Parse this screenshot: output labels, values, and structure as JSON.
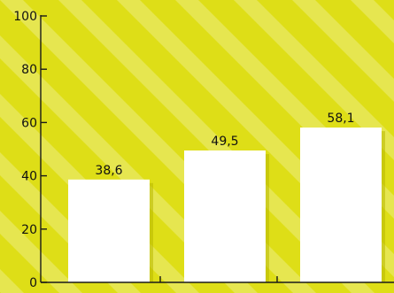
{
  "chart_data": {
    "type": "bar",
    "categories": [
      "",
      "",
      ""
    ],
    "values": [
      38.6,
      49.5,
      58.1
    ],
    "data_labels": [
      "38,6",
      "49,5",
      "58,1"
    ],
    "title": "",
    "xlabel": "",
    "ylabel": "",
    "ylim": [
      0,
      100
    ],
    "yticks": [
      0,
      20,
      40,
      60,
      80,
      100
    ],
    "ytick_labels": [
      "0",
      "20",
      "40",
      "60",
      "80",
      "100"
    ],
    "grid": false,
    "legend": "none",
    "colors": {
      "background": "#dede17",
      "stripe": "#e6e650",
      "bar": "#ffffff",
      "bar_shadow": "#b8b800",
      "axis": "#1a1a1a",
      "text": "#111111"
    }
  }
}
